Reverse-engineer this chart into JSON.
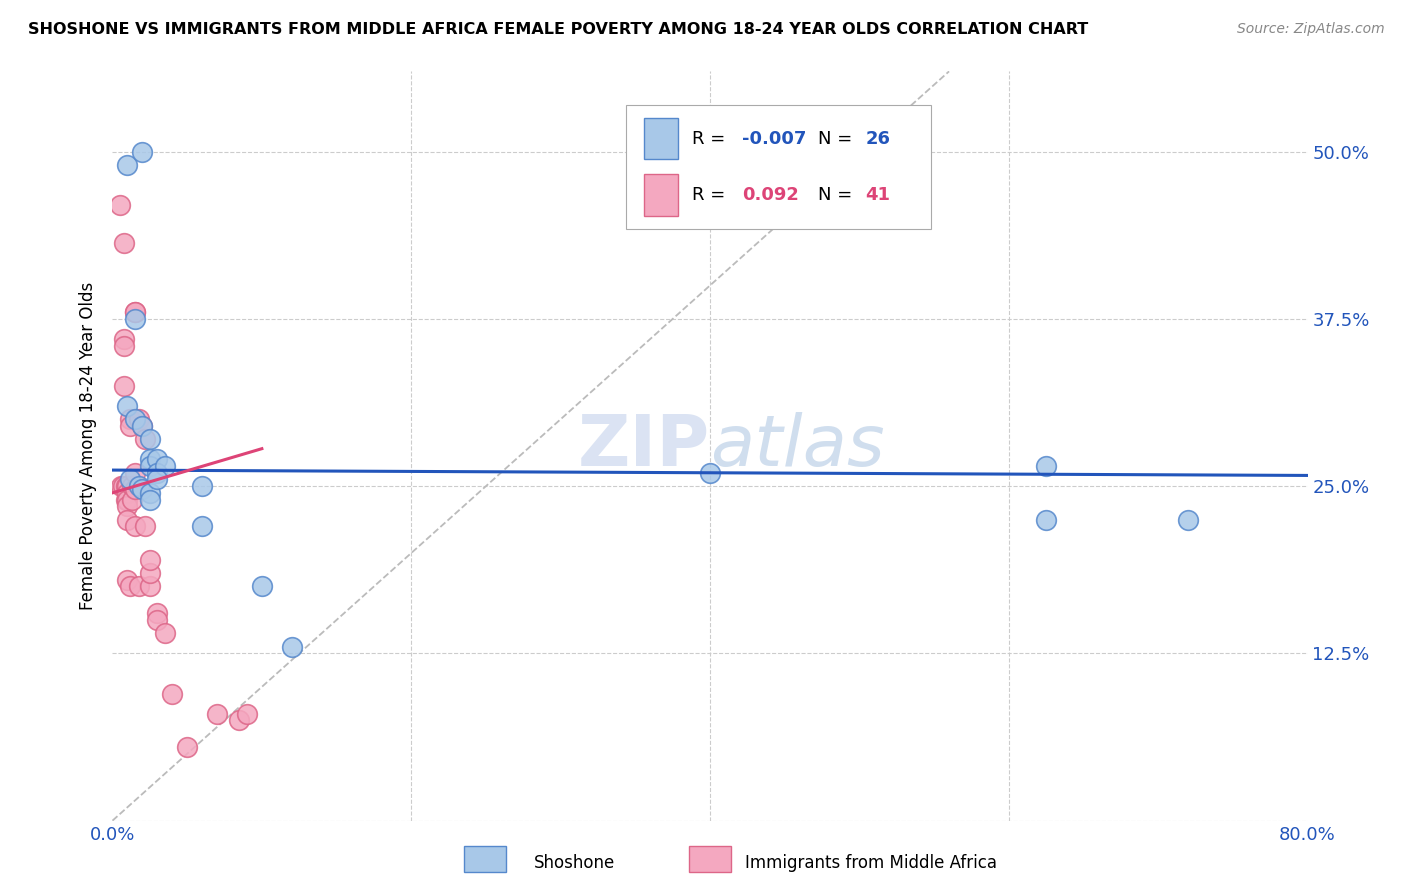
{
  "title": "SHOSHONE VS IMMIGRANTS FROM MIDDLE AFRICA FEMALE POVERTY AMONG 18-24 YEAR OLDS CORRELATION CHART",
  "source": "Source: ZipAtlas.com",
  "ylabel": "Female Poverty Among 18-24 Year Olds",
  "xlim": [
    0.0,
    0.8
  ],
  "ylim": [
    0.0,
    0.56
  ],
  "xticks": [
    0.0,
    0.2,
    0.4,
    0.6,
    0.8
  ],
  "xticklabels": [
    "0.0%",
    "",
    "",
    "",
    "80.0%"
  ],
  "yticks": [
    0.0,
    0.125,
    0.25,
    0.375,
    0.5
  ],
  "yticklabels_right": [
    "",
    "12.5%",
    "25.0%",
    "37.5%",
    "50.0%"
  ],
  "shoshone_color": "#a8c8e8",
  "immigrant_color": "#f4a8c0",
  "shoshone_edge": "#5588cc",
  "immigrant_edge": "#dd6688",
  "trend_blue": "#2255bb",
  "trend_pink": "#dd4477",
  "diagonal_color": "#bbbbbb",
  "grid_color": "#cccccc",
  "watermark_color": "#ccd8ee",
  "shoshone_x": [
    0.01,
    0.02,
    0.015,
    0.01,
    0.015,
    0.02,
    0.025,
    0.025,
    0.025,
    0.03,
    0.03,
    0.035,
    0.012,
    0.018,
    0.02,
    0.025,
    0.025,
    0.03,
    0.06,
    0.06,
    0.1,
    0.12,
    0.4,
    0.625,
    0.625,
    0.72
  ],
  "shoshone_y": [
    0.49,
    0.5,
    0.375,
    0.31,
    0.3,
    0.295,
    0.285,
    0.27,
    0.265,
    0.27,
    0.26,
    0.265,
    0.255,
    0.25,
    0.248,
    0.245,
    0.24,
    0.255,
    0.25,
    0.22,
    0.175,
    0.13,
    0.26,
    0.265,
    0.225,
    0.225
  ],
  "immigrant_x": [
    0.005,
    0.006,
    0.007,
    0.008,
    0.008,
    0.008,
    0.008,
    0.009,
    0.009,
    0.01,
    0.01,
    0.01,
    0.01,
    0.01,
    0.01,
    0.012,
    0.012,
    0.012,
    0.013,
    0.013,
    0.015,
    0.015,
    0.015,
    0.015,
    0.015,
    0.018,
    0.018,
    0.02,
    0.022,
    0.022,
    0.025,
    0.025,
    0.025,
    0.03,
    0.03,
    0.035,
    0.04,
    0.05,
    0.07,
    0.085,
    0.09
  ],
  "immigrant_y": [
    0.46,
    0.25,
    0.25,
    0.432,
    0.36,
    0.355,
    0.325,
    0.25,
    0.24,
    0.25,
    0.245,
    0.24,
    0.235,
    0.225,
    0.18,
    0.3,
    0.295,
    0.175,
    0.25,
    0.24,
    0.38,
    0.38,
    0.26,
    0.248,
    0.22,
    0.3,
    0.175,
    0.295,
    0.285,
    0.22,
    0.175,
    0.185,
    0.195,
    0.155,
    0.15,
    0.14,
    0.095,
    0.055,
    0.08,
    0.075,
    0.08
  ],
  "blue_trend_x": [
    0.0,
    0.8
  ],
  "blue_trend_y": [
    0.262,
    0.258
  ],
  "pink_trend_x": [
    0.0,
    0.1
  ],
  "pink_trend_y": [
    0.245,
    0.275
  ]
}
